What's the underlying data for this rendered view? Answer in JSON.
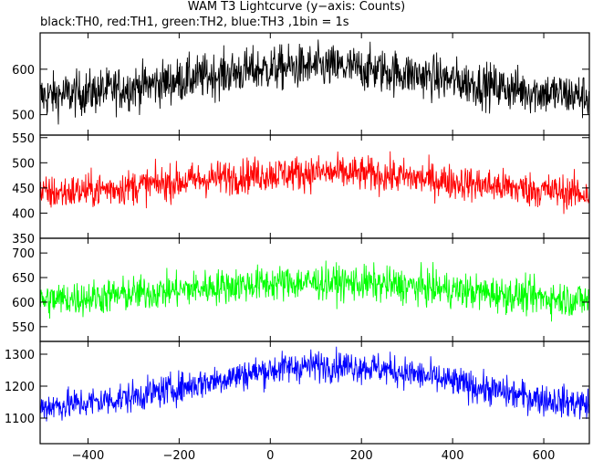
{
  "chart_data": {
    "title": "WAM T3 Lightcurve (y−axis: Counts)",
    "subtitle": "black:TH0, red:TH1, green:TH2, blue:TH3 ,1bin = 1s",
    "type": "line",
    "xlim": [
      -505,
      700
    ],
    "x_ticks": [
      -400,
      -200,
      0,
      200,
      400,
      600
    ],
    "x_tick_labels": [
      "−400",
      "−200",
      "0",
      "200",
      "400",
      "600"
    ],
    "grid": false,
    "panels": [
      {
        "name": "TH0",
        "color": "#000000",
        "ylim": [
          455,
          680
        ],
        "y_ticks": [
          500,
          600
        ],
        "y_tick_labels": [
          "500",
          "600"
        ],
        "baseline": 530,
        "peak": 605,
        "peak_x": 100,
        "width": 300,
        "noise": 45,
        "values": []
      },
      {
        "name": "TH1",
        "color": "#ff0000",
        "ylim": [
          350,
          555
        ],
        "y_ticks": [
          350,
          400,
          450,
          500,
          550
        ],
        "y_tick_labels": [
          "350",
          "400",
          "450",
          "500",
          "550"
        ],
        "baseline": 430,
        "peak": 480,
        "peak_x": 100,
        "width": 320,
        "noise": 32,
        "values": []
      },
      {
        "name": "TH2",
        "color": "#00ff00",
        "ylim": [
          520,
          730
        ],
        "y_ticks": [
          550,
          600,
          650,
          700
        ],
        "y_tick_labels": [
          "550",
          "600",
          "650",
          "700"
        ],
        "baseline": 595,
        "peak": 640,
        "peak_x": 100,
        "width": 330,
        "noise": 33,
        "values": []
      },
      {
        "name": "TH3",
        "color": "#0000ff",
        "ylim": [
          1020,
          1340
        ],
        "y_ticks": [
          1100,
          1200,
          1300
        ],
        "y_tick_labels": [
          "1100",
          "1200",
          "1300"
        ],
        "baseline": 1125,
        "peak": 1265,
        "peak_x": 130,
        "width": 280,
        "noise": 45,
        "values": []
      }
    ]
  }
}
